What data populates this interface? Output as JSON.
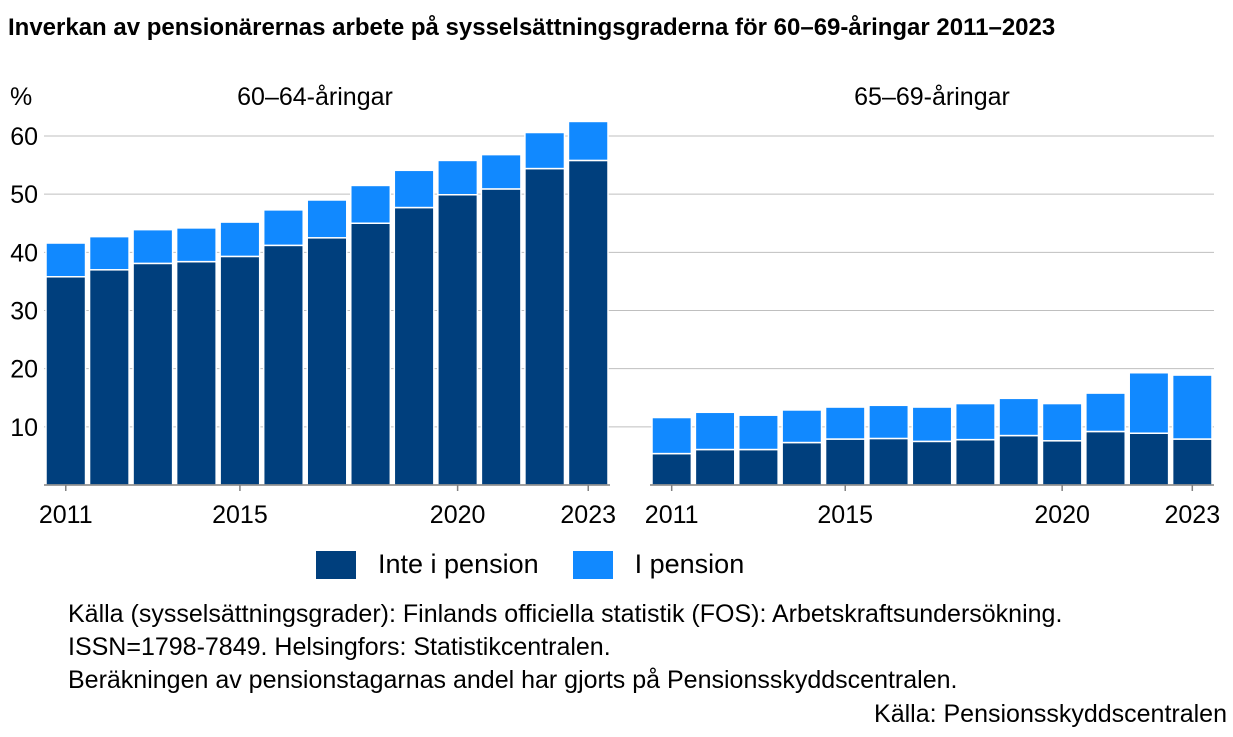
{
  "title": "Inverkan av pensionärernas arbete på sysselsättningsgraderna för 60–69-åringar 2011–2023",
  "colors": {
    "inte_i_pension": "#003F7D",
    "i_pension": "#1189FF",
    "grid": "#BFBFBF",
    "axis": "#808080"
  },
  "chart_data": [
    {
      "type": "bar",
      "stacked": true,
      "title": "60–64-åringar",
      "ylabel": "%",
      "ylim": [
        0,
        60
      ],
      "yticks": [
        10,
        20,
        30,
        40,
        50,
        60
      ],
      "grid": true,
      "x": [
        2011,
        2012,
        2013,
        2014,
        2015,
        2016,
        2017,
        2018,
        2019,
        2020,
        2021,
        2022,
        2023
      ],
      "xtick_labels": [
        "2011",
        "2015",
        "2020",
        "2023"
      ],
      "series": [
        {
          "name": "Inte i pension",
          "values": [
            35.8,
            37.0,
            38.1,
            38.4,
            39.3,
            41.2,
            42.5,
            45.0,
            47.7,
            49.9,
            50.9,
            54.4,
            55.8
          ]
        },
        {
          "name": "I pension",
          "values": [
            5.8,
            5.7,
            5.8,
            5.8,
            5.9,
            6.1,
            6.5,
            6.5,
            6.4,
            5.9,
            5.9,
            6.2,
            6.7
          ]
        }
      ]
    },
    {
      "type": "bar",
      "stacked": true,
      "title": "65–69-åringar",
      "ylim": [
        0,
        60
      ],
      "grid": true,
      "x": [
        2011,
        2012,
        2013,
        2014,
        2015,
        2016,
        2017,
        2018,
        2019,
        2020,
        2021,
        2022,
        2023
      ],
      "xtick_labels": [
        "2011",
        "2015",
        "2020",
        "2023"
      ],
      "series": [
        {
          "name": "Inte i pension",
          "values": [
            5.4,
            6.1,
            6.1,
            7.3,
            7.9,
            8.0,
            7.5,
            7.8,
            8.5,
            7.6,
            9.2,
            8.9,
            7.9
          ]
        },
        {
          "name": "I pension",
          "values": [
            6.2,
            6.4,
            5.9,
            5.6,
            5.5,
            5.7,
            5.9,
            6.2,
            6.4,
            6.4,
            6.6,
            10.4,
            11.0
          ]
        }
      ]
    }
  ],
  "legend": [
    {
      "label": "Inte i pension",
      "color": "#003F7D"
    },
    {
      "label": "I pension",
      "color": "#1189FF"
    }
  ],
  "source_lines": [
    "Källa (sysselsättningsgrader): Finlands officiella statistik (FOS): Arbetskraftsundersökning.",
    "ISSN=1798-7849. Helsingfors: Statistikcentralen.",
    "Beräkningen av pensionstagarnas andel har gjorts på Pensionsskyddscentralen.",
    "Källa: Pensionsskyddscentralen"
  ]
}
